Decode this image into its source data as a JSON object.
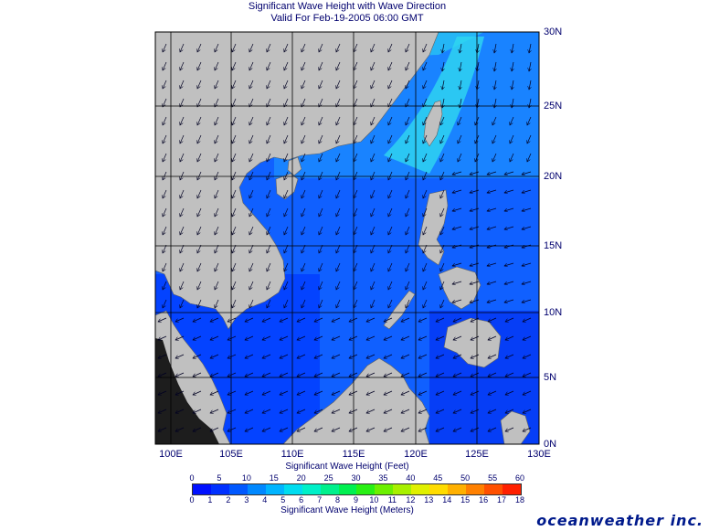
{
  "title": {
    "line1": "Significant Wave Height with Wave Direction",
    "line2": "Valid For Feb-19-2005 06:00 GMT"
  },
  "map": {
    "region": "South China Sea",
    "longitude_labels": [
      "100E",
      "105E",
      "110E",
      "115E",
      "120E",
      "125E",
      "130E"
    ],
    "latitude_labels": [
      "0N",
      "5N",
      "10N",
      "15N",
      "20N",
      "25N",
      "30N"
    ],
    "land_color": "#c0c0c0",
    "grid_color": "#000000",
    "wave_direction": "arrows pointing mostly south-west (north-east monsoon)"
  },
  "colorbar": {
    "feet_title": "Significant Wave Height (Feet)",
    "meters_title": "Significant Wave Height (Meters)",
    "feet_ticks": [
      "0",
      "5",
      "10",
      "15",
      "20",
      "25",
      "30",
      "35",
      "40",
      "45",
      "50",
      "55",
      "60"
    ],
    "meter_ticks": [
      "0",
      "1",
      "2",
      "3",
      "4",
      "5",
      "6",
      "7",
      "8",
      "9",
      "10",
      "11",
      "12",
      "13",
      "14",
      "15",
      "16",
      "17",
      "18"
    ],
    "colors": [
      "#0010ff",
      "#0030ff",
      "#0058ff",
      "#0088ff",
      "#00b4ff",
      "#00dcf0",
      "#00f0c8",
      "#00f08c",
      "#00f050",
      "#28f014",
      "#6cf000",
      "#a8f000",
      "#e0f000",
      "#ffdc00",
      "#ffb000",
      "#ff8000",
      "#ff5000",
      "#ff2000"
    ]
  },
  "brand": "oceanweather inc."
}
